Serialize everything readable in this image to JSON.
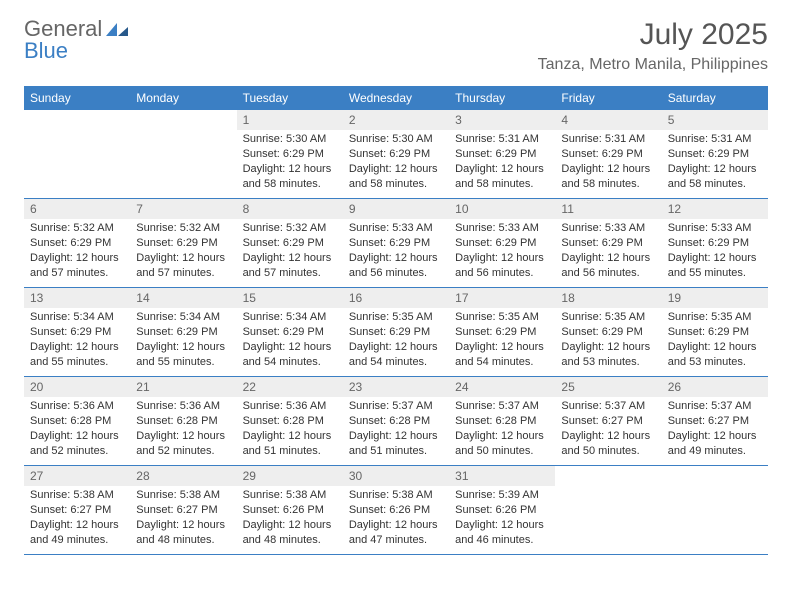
{
  "logo": {
    "word1": "General",
    "word2": "Blue"
  },
  "title": "July 2025",
  "location": "Tanza, Metro Manila, Philippines",
  "colors": {
    "accent": "#3b7fc4",
    "header_bg": "#3b7fc4",
    "header_fg": "#ffffff",
    "daynum_bg": "#eeeeee",
    "text": "#333333",
    "muted": "#666666"
  },
  "dow": [
    "Sunday",
    "Monday",
    "Tuesday",
    "Wednesday",
    "Thursday",
    "Friday",
    "Saturday"
  ],
  "weeks": [
    [
      null,
      null,
      {
        "n": "1",
        "sunrise": "Sunrise: 5:30 AM",
        "sunset": "Sunset: 6:29 PM",
        "daylight": "Daylight: 12 hours and 58 minutes."
      },
      {
        "n": "2",
        "sunrise": "Sunrise: 5:30 AM",
        "sunset": "Sunset: 6:29 PM",
        "daylight": "Daylight: 12 hours and 58 minutes."
      },
      {
        "n": "3",
        "sunrise": "Sunrise: 5:31 AM",
        "sunset": "Sunset: 6:29 PM",
        "daylight": "Daylight: 12 hours and 58 minutes."
      },
      {
        "n": "4",
        "sunrise": "Sunrise: 5:31 AM",
        "sunset": "Sunset: 6:29 PM",
        "daylight": "Daylight: 12 hours and 58 minutes."
      },
      {
        "n": "5",
        "sunrise": "Sunrise: 5:31 AM",
        "sunset": "Sunset: 6:29 PM",
        "daylight": "Daylight: 12 hours and 58 minutes."
      }
    ],
    [
      {
        "n": "6",
        "sunrise": "Sunrise: 5:32 AM",
        "sunset": "Sunset: 6:29 PM",
        "daylight": "Daylight: 12 hours and 57 minutes."
      },
      {
        "n": "7",
        "sunrise": "Sunrise: 5:32 AM",
        "sunset": "Sunset: 6:29 PM",
        "daylight": "Daylight: 12 hours and 57 minutes."
      },
      {
        "n": "8",
        "sunrise": "Sunrise: 5:32 AM",
        "sunset": "Sunset: 6:29 PM",
        "daylight": "Daylight: 12 hours and 57 minutes."
      },
      {
        "n": "9",
        "sunrise": "Sunrise: 5:33 AM",
        "sunset": "Sunset: 6:29 PM",
        "daylight": "Daylight: 12 hours and 56 minutes."
      },
      {
        "n": "10",
        "sunrise": "Sunrise: 5:33 AM",
        "sunset": "Sunset: 6:29 PM",
        "daylight": "Daylight: 12 hours and 56 minutes."
      },
      {
        "n": "11",
        "sunrise": "Sunrise: 5:33 AM",
        "sunset": "Sunset: 6:29 PM",
        "daylight": "Daylight: 12 hours and 56 minutes."
      },
      {
        "n": "12",
        "sunrise": "Sunrise: 5:33 AM",
        "sunset": "Sunset: 6:29 PM",
        "daylight": "Daylight: 12 hours and 55 minutes."
      }
    ],
    [
      {
        "n": "13",
        "sunrise": "Sunrise: 5:34 AM",
        "sunset": "Sunset: 6:29 PM",
        "daylight": "Daylight: 12 hours and 55 minutes."
      },
      {
        "n": "14",
        "sunrise": "Sunrise: 5:34 AM",
        "sunset": "Sunset: 6:29 PM",
        "daylight": "Daylight: 12 hours and 55 minutes."
      },
      {
        "n": "15",
        "sunrise": "Sunrise: 5:34 AM",
        "sunset": "Sunset: 6:29 PM",
        "daylight": "Daylight: 12 hours and 54 minutes."
      },
      {
        "n": "16",
        "sunrise": "Sunrise: 5:35 AM",
        "sunset": "Sunset: 6:29 PM",
        "daylight": "Daylight: 12 hours and 54 minutes."
      },
      {
        "n": "17",
        "sunrise": "Sunrise: 5:35 AM",
        "sunset": "Sunset: 6:29 PM",
        "daylight": "Daylight: 12 hours and 54 minutes."
      },
      {
        "n": "18",
        "sunrise": "Sunrise: 5:35 AM",
        "sunset": "Sunset: 6:29 PM",
        "daylight": "Daylight: 12 hours and 53 minutes."
      },
      {
        "n": "19",
        "sunrise": "Sunrise: 5:35 AM",
        "sunset": "Sunset: 6:29 PM",
        "daylight": "Daylight: 12 hours and 53 minutes."
      }
    ],
    [
      {
        "n": "20",
        "sunrise": "Sunrise: 5:36 AM",
        "sunset": "Sunset: 6:28 PM",
        "daylight": "Daylight: 12 hours and 52 minutes."
      },
      {
        "n": "21",
        "sunrise": "Sunrise: 5:36 AM",
        "sunset": "Sunset: 6:28 PM",
        "daylight": "Daylight: 12 hours and 52 minutes."
      },
      {
        "n": "22",
        "sunrise": "Sunrise: 5:36 AM",
        "sunset": "Sunset: 6:28 PM",
        "daylight": "Daylight: 12 hours and 51 minutes."
      },
      {
        "n": "23",
        "sunrise": "Sunrise: 5:37 AM",
        "sunset": "Sunset: 6:28 PM",
        "daylight": "Daylight: 12 hours and 51 minutes."
      },
      {
        "n": "24",
        "sunrise": "Sunrise: 5:37 AM",
        "sunset": "Sunset: 6:28 PM",
        "daylight": "Daylight: 12 hours and 50 minutes."
      },
      {
        "n": "25",
        "sunrise": "Sunrise: 5:37 AM",
        "sunset": "Sunset: 6:27 PM",
        "daylight": "Daylight: 12 hours and 50 minutes."
      },
      {
        "n": "26",
        "sunrise": "Sunrise: 5:37 AM",
        "sunset": "Sunset: 6:27 PM",
        "daylight": "Daylight: 12 hours and 49 minutes."
      }
    ],
    [
      {
        "n": "27",
        "sunrise": "Sunrise: 5:38 AM",
        "sunset": "Sunset: 6:27 PM",
        "daylight": "Daylight: 12 hours and 49 minutes."
      },
      {
        "n": "28",
        "sunrise": "Sunrise: 5:38 AM",
        "sunset": "Sunset: 6:27 PM",
        "daylight": "Daylight: 12 hours and 48 minutes."
      },
      {
        "n": "29",
        "sunrise": "Sunrise: 5:38 AM",
        "sunset": "Sunset: 6:26 PM",
        "daylight": "Daylight: 12 hours and 48 minutes."
      },
      {
        "n": "30",
        "sunrise": "Sunrise: 5:38 AM",
        "sunset": "Sunset: 6:26 PM",
        "daylight": "Daylight: 12 hours and 47 minutes."
      },
      {
        "n": "31",
        "sunrise": "Sunrise: 5:39 AM",
        "sunset": "Sunset: 6:26 PM",
        "daylight": "Daylight: 12 hours and 46 minutes."
      },
      null,
      null
    ]
  ]
}
